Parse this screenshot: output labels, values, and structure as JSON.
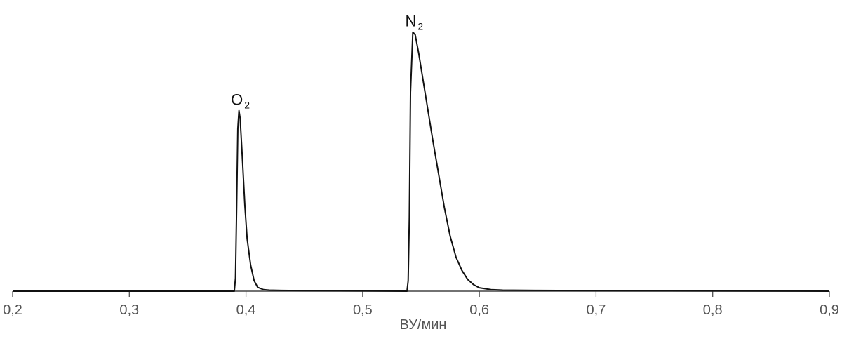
{
  "chart_data": {
    "type": "line",
    "title": "",
    "xlabel": "ВУ/мин",
    "ylabel": "",
    "xlim": [
      0.2,
      0.9
    ],
    "ylim": [
      0,
      1
    ],
    "grid": false,
    "x_ticks": [
      0.2,
      0.3,
      0.4,
      0.5,
      0.6,
      0.7,
      0.8,
      0.9
    ],
    "x_tick_labels": [
      "0,2",
      "0,3",
      "0,4",
      "0,5",
      "0,6",
      "0,7",
      "0,8",
      "0,9"
    ],
    "series": [
      {
        "color": "#111111",
        "x": [
          0.2,
          0.39,
          0.391,
          0.392,
          0.393,
          0.394,
          0.395,
          0.397,
          0.399,
          0.401,
          0.404,
          0.407,
          0.41,
          0.415,
          0.42,
          0.43,
          0.45,
          0.5,
          0.538,
          0.539,
          0.54,
          0.541,
          0.543,
          0.545,
          0.548,
          0.552,
          0.556,
          0.56,
          0.565,
          0.57,
          0.575,
          0.58,
          0.585,
          0.59,
          0.595,
          0.6,
          0.61,
          0.62,
          0.65,
          0.7,
          0.8,
          0.9
        ],
        "y": [
          0.0,
          0.0,
          0.05,
          0.32,
          0.62,
          0.69,
          0.66,
          0.5,
          0.33,
          0.2,
          0.1,
          0.04,
          0.015,
          0.006,
          0.004,
          0.003,
          0.002,
          0.001,
          0.0,
          0.04,
          0.28,
          0.76,
          0.99,
          0.98,
          0.91,
          0.8,
          0.69,
          0.58,
          0.45,
          0.32,
          0.21,
          0.13,
          0.08,
          0.045,
          0.025,
          0.013,
          0.006,
          0.004,
          0.003,
          0.002,
          0.001,
          0.0
        ]
      }
    ],
    "annotations": [
      {
        "text": "O",
        "sub": "2",
        "x": 0.394,
        "y": 0.69
      },
      {
        "text": "N",
        "sub": "2",
        "x": 0.543,
        "y": 0.99
      }
    ]
  }
}
